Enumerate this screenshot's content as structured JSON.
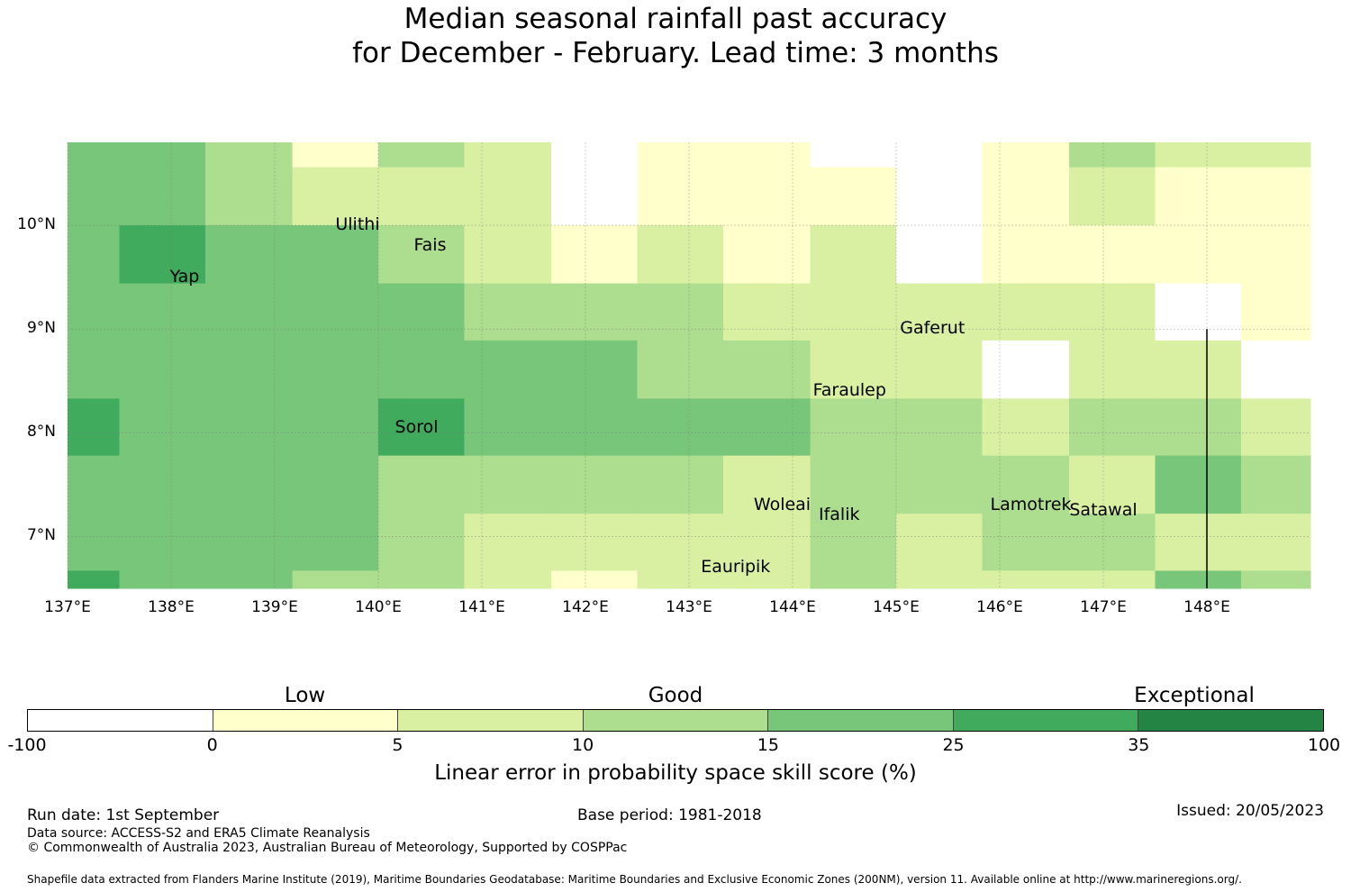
{
  "title": {
    "line1": "Median seasonal rainfall past accuracy",
    "line2": "for December - February. Lead time: 3 months"
  },
  "map": {
    "lon_range": [
      137,
      149
    ],
    "lat_range": [
      6.5,
      10.8
    ],
    "lon_ticks": [
      137,
      138,
      139,
      140,
      141,
      142,
      143,
      144,
      145,
      146,
      147,
      148
    ],
    "lat_ticks": [
      7,
      8,
      9,
      10
    ],
    "lon_tick_labels": [
      "137°E",
      "138°E",
      "139°E",
      "140°E",
      "141°E",
      "142°E",
      "143°E",
      "144°E",
      "145°E",
      "146°E",
      "147°E",
      "148°E"
    ],
    "lat_tick_labels": [
      "7°N",
      "8°N",
      "9°N",
      "10°N"
    ],
    "grid": true,
    "colors": [
      "#ffffff",
      "#ffffcc",
      "#d9f0a3",
      "#addd8e",
      "#78c679",
      "#41ab5d",
      "#238443"
    ],
    "col_edges": [
      137.0,
      137.5,
      138.33,
      139.17,
      140.0,
      140.83,
      141.67,
      142.5,
      143.33,
      144.17,
      145.0,
      145.83,
      146.67,
      147.5,
      148.33,
      149.0
    ],
    "row_edges": [
      10.8,
      10.56,
      10.0,
      9.44,
      8.89,
      8.33,
      7.78,
      7.22,
      6.67,
      6.5
    ],
    "grid_classes": [
      [
        4,
        4,
        3,
        1,
        3,
        2,
        0,
        1,
        1,
        0,
        0,
        1,
        3,
        2,
        2
      ],
      [
        4,
        4,
        3,
        2,
        2,
        2,
        0,
        1,
        1,
        1,
        0,
        1,
        2,
        1,
        1
      ],
      [
        4,
        5,
        4,
        4,
        3,
        2,
        1,
        2,
        1,
        2,
        0,
        1,
        1,
        1,
        1
      ],
      [
        4,
        4,
        4,
        4,
        4,
        3,
        3,
        3,
        2,
        2,
        2,
        2,
        2,
        0,
        1
      ],
      [
        4,
        4,
        4,
        4,
        4,
        4,
        4,
        3,
        3,
        2,
        2,
        0,
        2,
        2,
        0
      ],
      [
        5,
        4,
        4,
        4,
        5,
        4,
        4,
        4,
        4,
        3,
        3,
        2,
        3,
        3,
        2
      ],
      [
        4,
        4,
        4,
        4,
        3,
        3,
        3,
        3,
        2,
        3,
        3,
        3,
        2,
        4,
        3
      ],
      [
        4,
        4,
        4,
        4,
        3,
        2,
        2,
        2,
        2,
        3,
        2,
        3,
        3,
        2,
        2
      ],
      [
        5,
        4,
        4,
        3,
        3,
        2,
        1,
        2,
        2,
        3,
        2,
        2,
        2,
        4,
        3
      ]
    ],
    "places": [
      {
        "name": "Ulithi",
        "lon": 139.8,
        "lat": 10.0
      },
      {
        "name": "Fais",
        "lon": 140.5,
        "lat": 9.8
      },
      {
        "name": "Yap",
        "lon": 138.13,
        "lat": 9.5
      },
      {
        "name": "Gaferut",
        "lon": 145.35,
        "lat": 9.0
      },
      {
        "name": "Faraulep",
        "lon": 144.55,
        "lat": 8.4
      },
      {
        "name": "Sorol",
        "lon": 140.37,
        "lat": 8.05
      },
      {
        "name": "Woleai",
        "lon": 143.9,
        "lat": 7.3
      },
      {
        "name": "Ifalik",
        "lon": 144.45,
        "lat": 7.2
      },
      {
        "name": "Lamotrek",
        "lon": 146.3,
        "lat": 7.3
      },
      {
        "name": "Satawal",
        "lon": 147.0,
        "lat": 7.25
      },
      {
        "name": "Eauripik",
        "lon": 143.45,
        "lat": 6.7
      }
    ],
    "boundary_line": {
      "lon": 148.0,
      "lat_from": 9.0,
      "lat_to": 6.5
    }
  },
  "colorbar": {
    "categories": [
      {
        "label": "Low",
        "at": 1.5
      },
      {
        "label": "Good",
        "at": 3.5
      },
      {
        "label": "Exceptional",
        "at": 6.3
      }
    ],
    "ticks": [
      "-100",
      "0",
      "5",
      "10",
      "15",
      "25",
      "35",
      "100"
    ],
    "label": "Linear error in probability space skill score (%)"
  },
  "footer": {
    "run_date": "Run date: 1st September",
    "base_period": "Base period: 1981-2018",
    "issued": "Issued: 20/05/2023",
    "data_source": "Data source: ACCESS-S2 and ERA5 Climate Reanalysis",
    "copyright": "© Commonwealth of Australia 2023, Australian Bureau of Meteorology, Supported by COSPPac",
    "shapefile": "Shapefile data extracted from Flanders Marine Institute (2019), Maritime Boundaries Geodatabase: Maritime Boundaries and Exclusive Economic Zones (200NM), version 11. Available online at http://www.marineregions.org/."
  }
}
